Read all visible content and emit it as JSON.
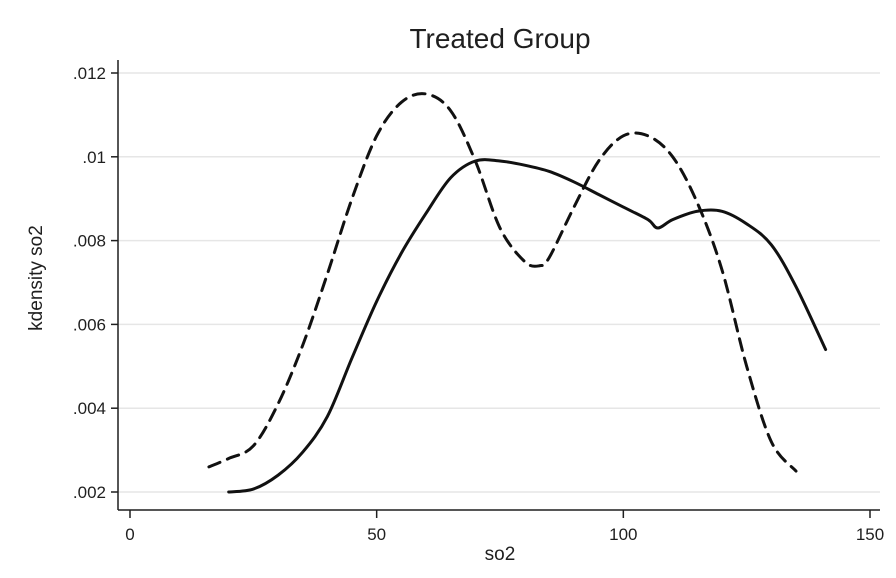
{
  "chart_data": {
    "type": "line",
    "title": "Treated Group",
    "xlabel": "so2",
    "ylabel": "kdensity so2",
    "xlim": [
      0,
      150
    ],
    "ylim": [
      0.002,
      0.012
    ],
    "x_ticks": [
      0,
      50,
      100,
      150
    ],
    "x_tick_labels": [
      "0",
      "50",
      "100",
      "150"
    ],
    "y_ticks": [
      0.002,
      0.004,
      0.006,
      0.008,
      0.01,
      0.012
    ],
    "y_tick_labels": [
      ".002",
      ".004",
      ".006",
      ".008",
      ".01",
      ".012"
    ],
    "grid": true,
    "series": [
      {
        "style": "solid",
        "color": "#111111",
        "x": [
          20,
          25,
          30,
          35,
          40,
          45,
          50,
          55,
          60,
          65,
          70,
          75,
          80,
          85,
          90,
          95,
          100,
          105,
          107,
          110,
          115,
          120,
          125,
          130,
          135,
          141
        ],
        "y": [
          0.002,
          0.00207,
          0.0024,
          0.00295,
          0.0038,
          0.0052,
          0.00655,
          0.0077,
          0.00865,
          0.0095,
          0.0099,
          0.0099,
          0.0098,
          0.00965,
          0.0094,
          0.0091,
          0.0088,
          0.0085,
          0.0083,
          0.0085,
          0.0087,
          0.0087,
          0.0084,
          0.0079,
          0.0069,
          0.0054
        ]
      },
      {
        "style": "dashed",
        "color": "#111111",
        "x": [
          16,
          20,
          25,
          30,
          35,
          40,
          45,
          50,
          55,
          60,
          65,
          70,
          75,
          80,
          83,
          85,
          90,
          95,
          100,
          105,
          110,
          115,
          120,
          125,
          130,
          135
        ],
        "y": [
          0.0026,
          0.0028,
          0.0031,
          0.0041,
          0.0055,
          0.0072,
          0.009,
          0.0105,
          0.0113,
          0.0115,
          0.0111,
          0.0099,
          0.0083,
          0.0075,
          0.0074,
          0.0076,
          0.0088,
          0.0099,
          0.0105,
          0.0105,
          0.01,
          0.0089,
          0.0073,
          0.005,
          0.0032,
          0.0025
        ]
      }
    ]
  }
}
